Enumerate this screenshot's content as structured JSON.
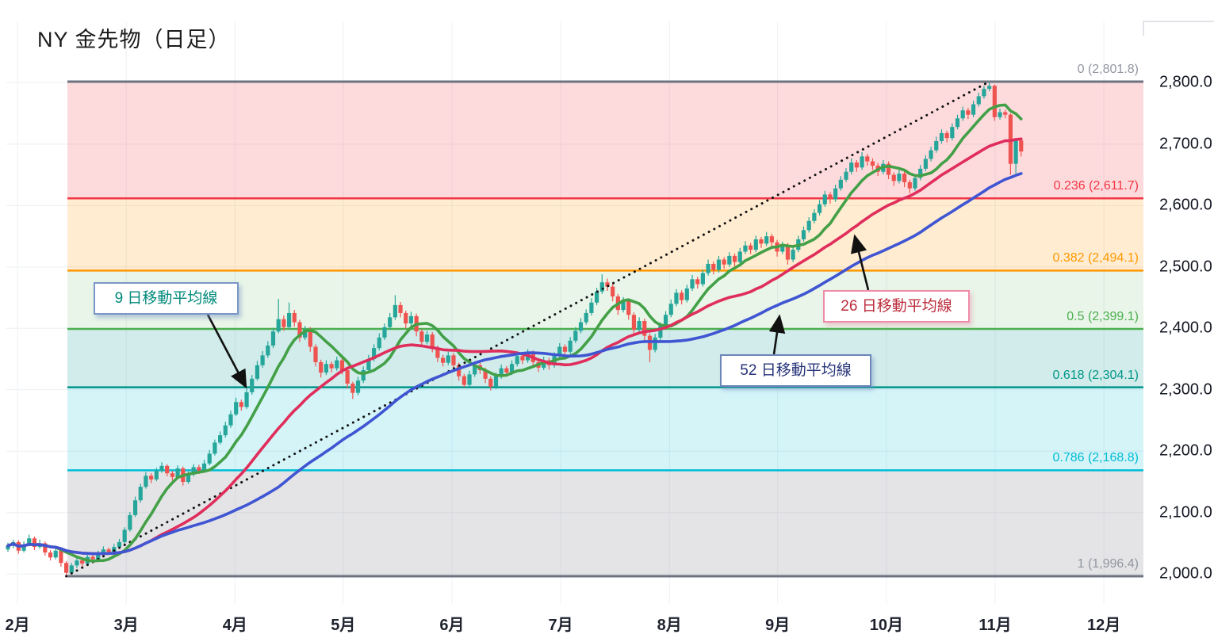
{
  "title": "NY 金先物（日足）",
  "annotations": [
    {
      "id": "ma9",
      "label": "9 日移動平均線",
      "text_color": "#00897b",
      "border_color": "#7b96c8",
      "shadow": "shadow-blue"
    },
    {
      "id": "ma26",
      "label": "26 日移動平均線",
      "text_color": "#bc2c3c",
      "border_color": "#f08bab",
      "shadow": "shadow-pink"
    },
    {
      "id": "ma52",
      "label": "52 日移動平均線",
      "text_color": "#283578",
      "border_color": "#6d87b8",
      "shadow": "shadow-blue"
    }
  ],
  "chart_data": {
    "type": "candlestick",
    "title": "NY 金先物（日足）",
    "candle_up_color": "#26a69a",
    "candle_down_color": "#ef5350",
    "grid_color": "#edeff3",
    "y_axis": {
      "side": "right",
      "ticks": [
        {
          "label": "2,800.0",
          "value": 2800
        },
        {
          "label": "2,700.0",
          "value": 2700
        },
        {
          "label": "2,600.0",
          "value": 2600
        },
        {
          "label": "2,500.0",
          "value": 2500
        },
        {
          "label": "2,400.0",
          "value": 2400
        },
        {
          "label": "2,300.0",
          "value": 2300
        },
        {
          "label": "2,200.0",
          "value": 2200
        },
        {
          "label": "2,100.0",
          "value": 2100
        },
        {
          "label": "2,000.0",
          "value": 2000
        }
      ]
    },
    "x_axis": {
      "months": [
        {
          "label": "2月",
          "tick_index": 1.8
        },
        {
          "label": "3月",
          "tick_index": 22.3
        },
        {
          "label": "4月",
          "tick_index": 42.8
        },
        {
          "label": "5月",
          "tick_index": 63.2
        },
        {
          "label": "6月",
          "tick_index": 83.7
        },
        {
          "label": "7月",
          "tick_index": 104.2
        },
        {
          "label": "8月",
          "tick_index": 124.7
        },
        {
          "label": "9月",
          "tick_index": 145.1
        },
        {
          "label": "10月",
          "tick_index": 165.6
        },
        {
          "label": "11月",
          "tick_index": 186.1
        },
        {
          "label": "12月",
          "tick_index": 206.6
        }
      ]
    },
    "fibonacci": {
      "high": 2801.8,
      "low": 1996.4,
      "levels": [
        {
          "ratio": "0",
          "value": 2801.8,
          "label": "0 (2,801.8)",
          "line_color": "#6f7380",
          "label_color": "#9296a0",
          "line_width": 3,
          "band_color": "rgba(242,54,69,0.18)"
        },
        {
          "ratio": "0.236",
          "value": 2611.7,
          "label": "0.236 (2,611.7)",
          "line_color": "#f23645",
          "label_color": "#f23645",
          "line_width": 2.5,
          "band_color": "rgba(255,152,0,0.18)"
        },
        {
          "ratio": "0.382",
          "value": 2494.1,
          "label": "0.382 (2,494.1)",
          "line_color": "#ff9800",
          "label_color": "#ff9800",
          "line_width": 2.5,
          "band_color": "rgba(76,175,80,0.13)"
        },
        {
          "ratio": "0.5",
          "value": 2399.1,
          "label": "0.5 (2,399.1)",
          "line_color": "#4caf50",
          "label_color": "#4caf50",
          "line_width": 2.5,
          "band_color": "rgba(0,150,136,0.18)"
        },
        {
          "ratio": "0.618",
          "value": 2304.1,
          "label": "0.618 (2,304.1)",
          "line_color": "#009688",
          "label_color": "#009688",
          "line_width": 2.5,
          "band_color": "rgba(0,188,212,0.17)"
        },
        {
          "ratio": "0.786",
          "value": 2168.8,
          "label": "0.786 (2,168.8)",
          "line_color": "#00bcd4",
          "label_color": "#00bcd4",
          "line_width": 2.5,
          "band_color": "rgba(149,152,161,0.26)"
        },
        {
          "ratio": "1",
          "value": 1996.4,
          "label": "1 (1,996.4)",
          "line_color": "#6f7380",
          "label_color": "#9296a0",
          "line_width": 3,
          "band_color": null
        }
      ]
    },
    "trendline": {
      "style": "dotted",
      "color": "#111111",
      "from_index": 11,
      "from_price": 1996.4,
      "to_index": 185,
      "to_price": 2801.8
    },
    "moving_averages": [
      {
        "label": "9 日移動平均線",
        "period": 9,
        "color": "#43a047",
        "width": 3.6
      },
      {
        "label": "26 日移動平均線",
        "period": 26,
        "color": "#e02e5c",
        "width": 3.6
      },
      {
        "label": "52 日移動平均線",
        "period": 52,
        "color": "#3f55d2",
        "width": 3.6
      }
    ],
    "candles": [
      [
        2040,
        2051,
        2036,
        2046
      ],
      [
        2046,
        2056,
        2042,
        2052
      ],
      [
        2052,
        2055,
        2033,
        2038
      ],
      [
        2038,
        2053,
        2035,
        2048
      ],
      [
        2048,
        2064,
        2045,
        2058
      ],
      [
        2058,
        2061,
        2039,
        2044
      ],
      [
        2044,
        2056,
        2041,
        2050
      ],
      [
        2050,
        2053,
        2030,
        2035
      ],
      [
        2035,
        2039,
        2022,
        2027
      ],
      [
        2027,
        2043,
        2024,
        2038
      ],
      [
        2038,
        2041,
        2012,
        2018
      ],
      [
        2018,
        2021,
        1996.4,
        2002
      ],
      [
        2002,
        2018,
        1999,
        2014
      ],
      [
        2014,
        2027,
        2010,
        2022
      ],
      [
        2022,
        2025,
        2012,
        2017
      ],
      [
        2017,
        2033,
        2014,
        2028
      ],
      [
        2028,
        2031,
        2019,
        2024
      ],
      [
        2024,
        2038,
        2021,
        2033
      ],
      [
        2033,
        2045,
        2030,
        2040
      ],
      [
        2040,
        2043,
        2031,
        2036
      ],
      [
        2036,
        2049,
        2033,
        2044
      ],
      [
        2044,
        2057,
        2041,
        2052
      ],
      [
        2052,
        2076,
        2049,
        2072
      ],
      [
        2072,
        2101,
        2069,
        2096
      ],
      [
        2096,
        2126,
        2093,
        2120
      ],
      [
        2120,
        2147,
        2116,
        2142
      ],
      [
        2142,
        2166,
        2139,
        2160
      ],
      [
        2160,
        2164,
        2148,
        2154
      ],
      [
        2154,
        2173,
        2151,
        2168
      ],
      [
        2168,
        2182,
        2165,
        2176
      ],
      [
        2176,
        2179,
        2159,
        2164
      ],
      [
        2164,
        2168,
        2152,
        2158
      ],
      [
        2158,
        2177,
        2155,
        2172
      ],
      [
        2172,
        2175,
        2144,
        2150
      ],
      [
        2150,
        2167,
        2147,
        2162
      ],
      [
        2162,
        2179,
        2159,
        2174
      ],
      [
        2174,
        2178,
        2163,
        2168
      ],
      [
        2168,
        2186,
        2165,
        2180
      ],
      [
        2180,
        2202,
        2177,
        2196
      ],
      [
        2196,
        2219,
        2193,
        2214
      ],
      [
        2214,
        2232,
        2211,
        2226
      ],
      [
        2226,
        2248,
        2222,
        2242
      ],
      [
        2242,
        2266,
        2238,
        2260
      ],
      [
        2260,
        2287,
        2257,
        2280
      ],
      [
        2280,
        2284,
        2266,
        2272
      ],
      [
        2272,
        2302,
        2269,
        2296
      ],
      [
        2296,
        2324,
        2292,
        2318
      ],
      [
        2318,
        2347,
        2315,
        2340
      ],
      [
        2340,
        2363,
        2336,
        2356
      ],
      [
        2356,
        2379,
        2352,
        2372
      ],
      [
        2372,
        2401,
        2368,
        2395
      ],
      [
        2395,
        2448,
        2392,
        2415
      ],
      [
        2415,
        2421,
        2396,
        2402
      ],
      [
        2402,
        2442,
        2399,
        2425
      ],
      [
        2425,
        2430,
        2403,
        2410
      ],
      [
        2410,
        2414,
        2378,
        2385
      ],
      [
        2385,
        2404,
        2381,
        2398
      ],
      [
        2398,
        2402,
        2362,
        2370
      ],
      [
        2370,
        2374,
        2338,
        2345
      ],
      [
        2345,
        2349,
        2320,
        2328
      ],
      [
        2328,
        2348,
        2324,
        2342
      ],
      [
        2342,
        2346,
        2328,
        2335
      ],
      [
        2335,
        2354,
        2331,
        2348
      ],
      [
        2348,
        2352,
        2325,
        2332
      ],
      [
        2332,
        2336,
        2302,
        2310
      ],
      [
        2310,
        2313,
        2285,
        2295
      ],
      [
        2295,
        2321,
        2291,
        2315
      ],
      [
        2315,
        2338,
        2311,
        2332
      ],
      [
        2332,
        2357,
        2329,
        2350
      ],
      [
        2350,
        2374,
        2346,
        2368
      ],
      [
        2368,
        2392,
        2364,
        2385
      ],
      [
        2385,
        2408,
        2381,
        2402
      ],
      [
        2402,
        2425,
        2398,
        2418
      ],
      [
        2418,
        2454,
        2414,
        2438
      ],
      [
        2438,
        2443,
        2418,
        2425
      ],
      [
        2425,
        2429,
        2400,
        2408
      ],
      [
        2408,
        2427,
        2404,
        2420
      ],
      [
        2420,
        2424,
        2387,
        2395
      ],
      [
        2395,
        2399,
        2371,
        2378
      ],
      [
        2378,
        2396,
        2374,
        2390
      ],
      [
        2390,
        2394,
        2361,
        2368
      ],
      [
        2368,
        2372,
        2345,
        2352
      ],
      [
        2352,
        2357,
        2338,
        2344
      ],
      [
        2344,
        2362,
        2340,
        2356
      ],
      [
        2356,
        2360,
        2333,
        2340
      ],
      [
        2340,
        2344,
        2315,
        2322
      ],
      [
        2322,
        2326,
        2304,
        2308
      ],
      [
        2308,
        2331,
        2305,
        2325
      ],
      [
        2325,
        2346,
        2321,
        2340
      ],
      [
        2340,
        2344,
        2326,
        2332
      ],
      [
        2332,
        2336,
        2311,
        2318
      ],
      [
        2318,
        2322,
        2299,
        2305
      ],
      [
        2305,
        2328,
        2301,
        2322
      ],
      [
        2322,
        2341,
        2318,
        2335
      ],
      [
        2335,
        2339,
        2322,
        2328
      ],
      [
        2328,
        2348,
        2324,
        2342
      ],
      [
        2342,
        2361,
        2338,
        2355
      ],
      [
        2355,
        2359,
        2342,
        2348
      ],
      [
        2348,
        2366,
        2344,
        2360
      ],
      [
        2360,
        2364,
        2338,
        2345
      ],
      [
        2345,
        2349,
        2329,
        2336
      ],
      [
        2336,
        2354,
        2332,
        2348
      ],
      [
        2348,
        2352,
        2333,
        2340
      ],
      [
        2340,
        2361,
        2336,
        2355
      ],
      [
        2355,
        2376,
        2351,
        2370
      ],
      [
        2370,
        2374,
        2355,
        2362
      ],
      [
        2362,
        2386,
        2358,
        2380
      ],
      [
        2380,
        2402,
        2376,
        2396
      ],
      [
        2396,
        2417,
        2392,
        2410
      ],
      [
        2410,
        2431,
        2406,
        2425
      ],
      [
        2425,
        2449,
        2421,
        2442
      ],
      [
        2442,
        2466,
        2438,
        2460
      ],
      [
        2460,
        2488,
        2456,
        2475
      ],
      [
        2475,
        2481,
        2461,
        2468
      ],
      [
        2468,
        2472,
        2444,
        2452
      ],
      [
        2452,
        2456,
        2422,
        2430
      ],
      [
        2430,
        2451,
        2426,
        2445
      ],
      [
        2445,
        2449,
        2414,
        2422
      ],
      [
        2422,
        2426,
        2390,
        2398
      ],
      [
        2398,
        2418,
        2394,
        2412
      ],
      [
        2412,
        2416,
        2380,
        2388
      ],
      [
        2388,
        2392,
        2345,
        2365
      ],
      [
        2365,
        2391,
        2361,
        2385
      ],
      [
        2385,
        2410,
        2381,
        2404
      ],
      [
        2404,
        2428,
        2400,
        2422
      ],
      [
        2422,
        2447,
        2418,
        2440
      ],
      [
        2440,
        2464,
        2436,
        2458
      ],
      [
        2458,
        2462,
        2439,
        2446
      ],
      [
        2446,
        2471,
        2442,
        2465
      ],
      [
        2465,
        2487,
        2461,
        2480
      ],
      [
        2480,
        2484,
        2465,
        2472
      ],
      [
        2472,
        2496,
        2468,
        2490
      ],
      [
        2490,
        2512,
        2486,
        2505
      ],
      [
        2505,
        2509,
        2488,
        2495
      ],
      [
        2495,
        2518,
        2491,
        2512
      ],
      [
        2512,
        2516,
        2497,
        2504
      ],
      [
        2504,
        2524,
        2500,
        2518
      ],
      [
        2518,
        2522,
        2501,
        2508
      ],
      [
        2508,
        2531,
        2504,
        2525
      ],
      [
        2525,
        2542,
        2521,
        2535
      ],
      [
        2535,
        2539,
        2521,
        2528
      ],
      [
        2528,
        2551,
        2524,
        2545
      ],
      [
        2545,
        2549,
        2531,
        2538
      ],
      [
        2538,
        2557,
        2534,
        2550
      ],
      [
        2550,
        2554,
        2533,
        2540
      ],
      [
        2540,
        2544,
        2517,
        2525
      ],
      [
        2525,
        2541,
        2521,
        2535
      ],
      [
        2535,
        2539,
        2504,
        2512
      ],
      [
        2512,
        2534,
        2508,
        2528
      ],
      [
        2528,
        2551,
        2524,
        2545
      ],
      [
        2545,
        2566,
        2541,
        2560
      ],
      [
        2560,
        2581,
        2556,
        2575
      ],
      [
        2575,
        2594,
        2571,
        2588
      ],
      [
        2588,
        2609,
        2584,
        2602
      ],
      [
        2602,
        2624,
        2598,
        2618
      ],
      [
        2618,
        2622,
        2603,
        2610
      ],
      [
        2610,
        2634,
        2606,
        2628
      ],
      [
        2628,
        2648,
        2624,
        2642
      ],
      [
        2642,
        2661,
        2638,
        2655
      ],
      [
        2655,
        2677,
        2651,
        2670
      ],
      [
        2670,
        2674,
        2655,
        2662
      ],
      [
        2662,
        2687,
        2658,
        2680
      ],
      [
        2680,
        2684,
        2665,
        2672
      ],
      [
        2672,
        2677,
        2658,
        2665
      ],
      [
        2665,
        2669,
        2648,
        2655
      ],
      [
        2655,
        2674,
        2651,
        2668
      ],
      [
        2668,
        2672,
        2643,
        2650
      ],
      [
        2650,
        2654,
        2632,
        2640
      ],
      [
        2640,
        2658,
        2636,
        2652
      ],
      [
        2652,
        2656,
        2630,
        2638
      ],
      [
        2638,
        2642,
        2620,
        2628
      ],
      [
        2628,
        2651,
        2624,
        2645
      ],
      [
        2645,
        2666,
        2641,
        2660
      ],
      [
        2660,
        2682,
        2656,
        2676
      ],
      [
        2676,
        2696,
        2672,
        2690
      ],
      [
        2690,
        2712,
        2686,
        2705
      ],
      [
        2705,
        2724,
        2701,
        2718
      ],
      [
        2718,
        2722,
        2703,
        2710
      ],
      [
        2710,
        2734,
        2706,
        2728
      ],
      [
        2728,
        2748,
        2724,
        2742
      ],
      [
        2742,
        2761,
        2738,
        2755
      ],
      [
        2755,
        2759,
        2741,
        2748
      ],
      [
        2748,
        2771,
        2744,
        2765
      ],
      [
        2765,
        2784,
        2761,
        2778
      ],
      [
        2778,
        2795,
        2774,
        2790
      ],
      [
        2790,
        2801.8,
        2786,
        2795
      ],
      [
        2795,
        2797,
        2738,
        2744
      ],
      [
        2744,
        2758,
        2740,
        2752
      ],
      [
        2752,
        2756,
        2742,
        2748
      ],
      [
        2748,
        2750,
        2650,
        2668
      ],
      [
        2668,
        2710,
        2652,
        2706
      ],
      [
        2706,
        2709,
        2680,
        2688
      ]
    ]
  }
}
